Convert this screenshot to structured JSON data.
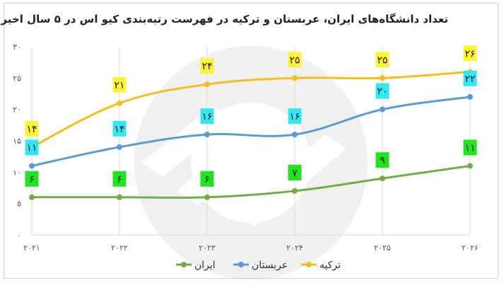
{
  "chart_data": {
    "type": "line",
    "title": "تعداد دانشگاه‌های ایران، عربستان و ترکیه در فهرست رتبه‌بندی کیو اس در ۵ سال اخیر",
    "categories": [
      "۲۰۲۱",
      "۲۰۲۲",
      "۲۰۲۳",
      "۲۰۲۴",
      "۲۰۲۵",
      "۲۰۲۶"
    ],
    "ylim": [
      0,
      30
    ],
    "yticks": [
      0,
      5,
      10,
      15,
      20,
      25,
      30
    ],
    "ytick_labels": [
      "۰",
      "۵",
      "۱۰",
      "۱۵",
      "۲۰",
      "۲۵",
      "۳۰"
    ],
    "grid": "vertical",
    "legend_position": "bottom",
    "series": [
      {
        "name": "ایران",
        "color": "#70AD47",
        "label_bg": "#22E222",
        "values": [
          6,
          6,
          6,
          7,
          9,
          11
        ],
        "labels": [
          "۶",
          "۶",
          "۶",
          "۷",
          "۹",
          "۱۱"
        ]
      },
      {
        "name": "عربستان",
        "color": "#5B9BD5",
        "label_bg": "#33E6F2",
        "values": [
          11,
          14,
          16,
          16,
          20,
          22
        ],
        "labels": [
          "۱۱",
          "۱۴",
          "۱۶",
          "۱۶",
          "۲۰",
          "۲۲"
        ]
      },
      {
        "name": "ترکیه",
        "color": "#F2BE22",
        "label_bg": "#FFF335",
        "values": [
          14,
          21,
          24,
          25,
          25,
          26
        ],
        "labels": [
          "۱۴",
          "۲۱",
          "۲۴",
          "۲۵",
          "۲۵",
          "۲۶"
        ]
      }
    ]
  }
}
